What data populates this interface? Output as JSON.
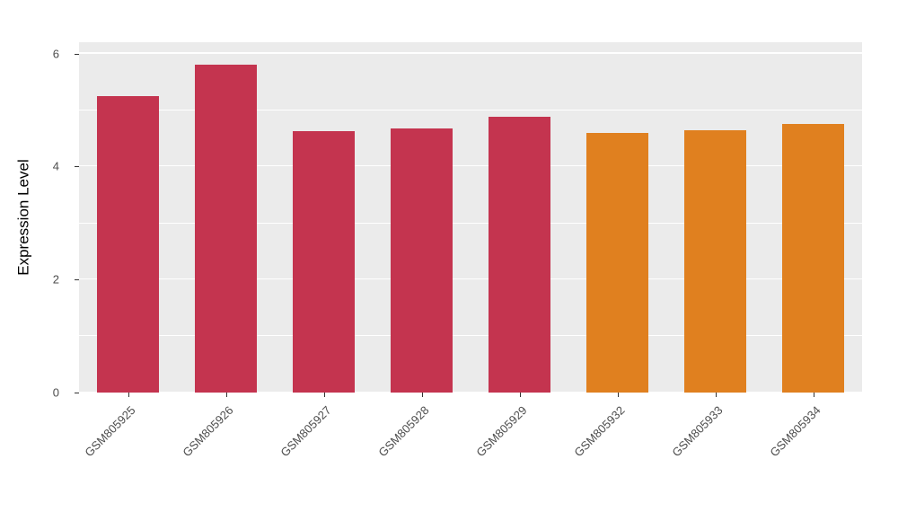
{
  "chart_data": {
    "type": "bar",
    "title": "",
    "xlabel": "",
    "ylabel": "Expression Level",
    "categories": [
      "GSM805925",
      "GSM805926",
      "GSM805927",
      "GSM805928",
      "GSM805929",
      "GSM805932",
      "GSM805933",
      "GSM805934"
    ],
    "values": [
      5.25,
      5.8,
      4.63,
      4.68,
      4.88,
      4.6,
      4.65,
      4.75
    ],
    "bar_colors": [
      "#C4344F",
      "#C4344F",
      "#C4344F",
      "#C4344F",
      "#C4344F",
      "#E0801F",
      "#E0801F",
      "#E0801F"
    ],
    "ylim": [
      0,
      6.2
    ],
    "yticks": [
      0,
      2,
      4,
      6
    ],
    "yticks_minor": [
      1,
      3,
      5
    ],
    "grid": true,
    "legend": "none",
    "panel_bg": "#EBEBEB",
    "grid_color": "#FFFFFF",
    "tick_label_color": "#4D4D4D"
  }
}
